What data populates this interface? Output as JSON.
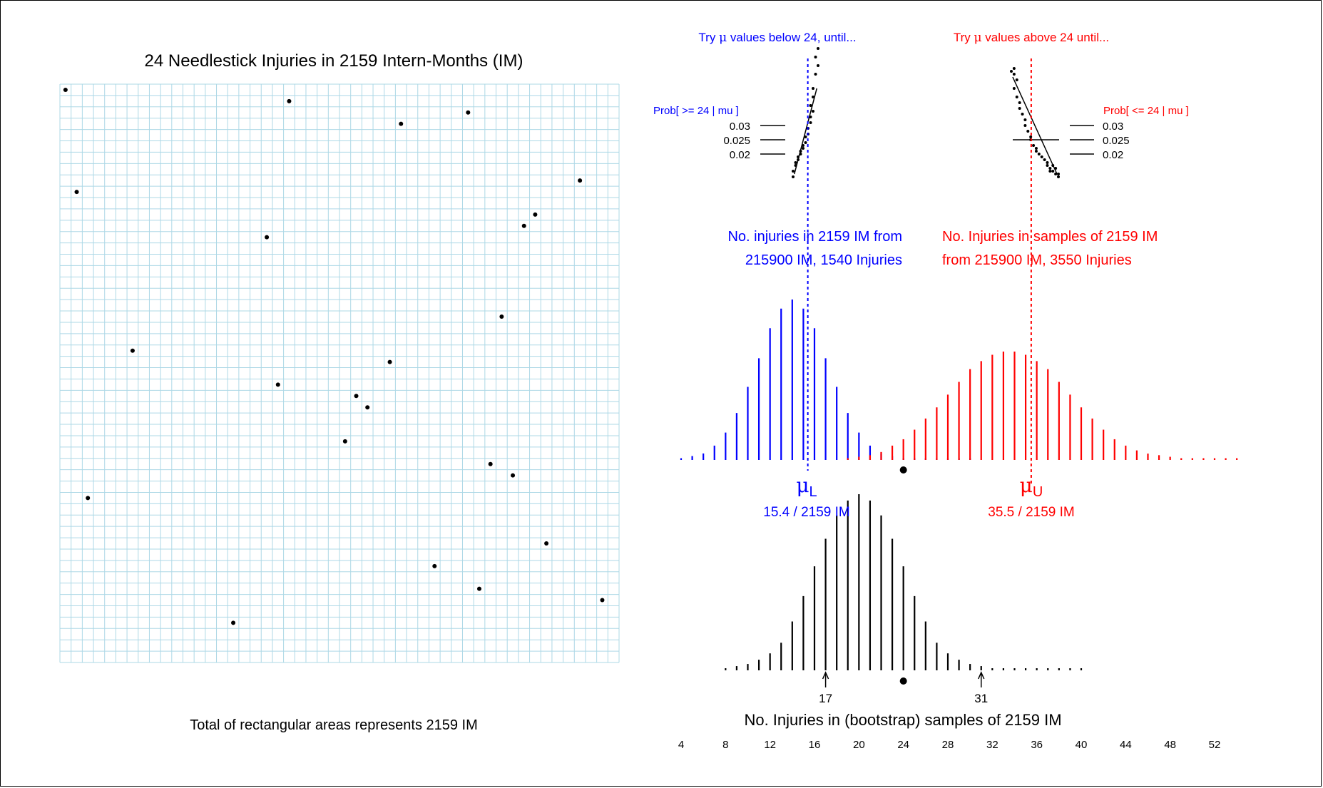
{
  "colors": {
    "lower": "#0000ff",
    "upper": "#ff0000",
    "grid": "#add8e6",
    "ink": "#000000"
  },
  "chart_data": [
    {
      "type": "scatter",
      "panel": "needlestick-grid",
      "title": "24 Needlestick Injuries in 2159 Intern-Months (IM)",
      "caption": "Total of rectangular areas represents 2159 IM",
      "grid": true,
      "grid_rows": 51,
      "grid_cols": 50,
      "points": [
        {
          "col": 0.5,
          "row": 0.5
        },
        {
          "col": 20.5,
          "row": 1.5
        },
        {
          "col": 36.5,
          "row": 2.5
        },
        {
          "col": 30.5,
          "row": 3.5
        },
        {
          "col": 46.5,
          "row": 8.5
        },
        {
          "col": 1.5,
          "row": 9.5
        },
        {
          "col": 42.5,
          "row": 11.5
        },
        {
          "col": 41.5,
          "row": 12.5
        },
        {
          "col": 18.5,
          "row": 13.5
        },
        {
          "col": 39.5,
          "row": 20.5
        },
        {
          "col": 6.5,
          "row": 23.5
        },
        {
          "col": 29.5,
          "row": 24.5
        },
        {
          "col": 19.5,
          "row": 26.5
        },
        {
          "col": 26.5,
          "row": 27.5
        },
        {
          "col": 27.5,
          "row": 28.5
        },
        {
          "col": 25.5,
          "row": 31.5
        },
        {
          "col": 38.5,
          "row": 33.5
        },
        {
          "col": 40.5,
          "row": 34.5
        },
        {
          "col": 2.5,
          "row": 36.5
        },
        {
          "col": 43.5,
          "row": 40.5
        },
        {
          "col": 33.5,
          "row": 42.5
        },
        {
          "col": 37.5,
          "row": 44.5
        },
        {
          "col": 48.5,
          "row": 45.5
        },
        {
          "col": 15.5,
          "row": 47.5
        }
      ]
    },
    {
      "type": "bar",
      "panel": "bootstrap-distribution",
      "xlabel": "No. Injuries in (bootstrap) samples of 2159 IM",
      "x_ticks": [
        4,
        8,
        12,
        16,
        20,
        24,
        28,
        32,
        36,
        40,
        44,
        48,
        52
      ],
      "xlim": [
        4,
        52
      ],
      "observed": 24,
      "markers": [
        {
          "x": 17,
          "label": "17"
        },
        {
          "x": 31,
          "label": "31"
        }
      ],
      "x": [
        8,
        9,
        10,
        11,
        12,
        13,
        14,
        15,
        16,
        17,
        18,
        19,
        20,
        21,
        22,
        23,
        24,
        25,
        26,
        27,
        28,
        29,
        30,
        31,
        32,
        33,
        34,
        35,
        36,
        37,
        38,
        39,
        40
      ],
      "values": [
        0.001,
        0.002,
        0.003,
        0.005,
        0.008,
        0.013,
        0.023,
        0.035,
        0.049,
        0.062,
        0.073,
        0.08,
        0.083,
        0.08,
        0.073,
        0.062,
        0.049,
        0.035,
        0.023,
        0.013,
        0.008,
        0.005,
        0.003,
        0.002,
        0.001,
        0.001,
        0.001,
        0.001,
        0.001,
        0.001,
        0.001,
        0.001,
        0.001
      ]
    },
    {
      "type": "bar",
      "panel": "lower-limit-distribution",
      "color": "#0000ff",
      "label_line1": "No. injuries in 2159 IM from",
      "label_line2": "215900 IM, 1540 Injuries",
      "estimate_symbol": "μ",
      "estimate_subscript": "L",
      "estimate_text": "15.4 / 2159 IM",
      "mu": 15.4,
      "x": [
        4,
        5,
        6,
        7,
        8,
        9,
        10,
        11,
        12,
        13,
        14,
        15,
        16,
        17,
        18,
        19,
        20,
        21,
        22,
        23,
        24,
        25,
        26,
        27,
        28,
        29,
        30
      ],
      "values": [
        0.001,
        0.003,
        0.005,
        0.011,
        0.021,
        0.036,
        0.056,
        0.078,
        0.101,
        0.116,
        0.123,
        0.116,
        0.101,
        0.078,
        0.056,
        0.036,
        0.021,
        0.011,
        0.005,
        0.003,
        0.001,
        0.001,
        0.001,
        0.001,
        0.001,
        0.001,
        0.001
      ]
    },
    {
      "type": "bar",
      "panel": "upper-limit-distribution",
      "color": "#ff0000",
      "label_line1": "No. Injuries in samples of 2159 IM",
      "label_line2": "from 215900 IM, 3550 Injuries",
      "estimate_symbol": "μ",
      "estimate_subscript": "U",
      "estimate_text": "35.5 / 2159 IM",
      "mu": 35.5,
      "x": [
        19,
        20,
        21,
        22,
        23,
        24,
        25,
        26,
        27,
        28,
        29,
        30,
        31,
        32,
        33,
        34,
        35,
        36,
        37,
        38,
        39,
        40,
        41,
        42,
        43,
        44,
        45,
        46,
        47,
        48,
        49,
        50,
        51,
        52,
        53,
        54
      ],
      "values": [
        0.001,
        0.002,
        0.003,
        0.005,
        0.009,
        0.013,
        0.019,
        0.026,
        0.033,
        0.041,
        0.049,
        0.057,
        0.062,
        0.066,
        0.068,
        0.068,
        0.066,
        0.062,
        0.057,
        0.049,
        0.041,
        0.033,
        0.026,
        0.019,
        0.013,
        0.009,
        0.006,
        0.004,
        0.003,
        0.002,
        0.001,
        0.001,
        0.001,
        0.001,
        0.001,
        0.001
      ]
    },
    {
      "type": "scatter",
      "panel": "lower-search",
      "color": "#0000ff",
      "heading_before": "Try ",
      "heading_symbol": "μ",
      "heading_after": " values below 24, until...",
      "yaxis_title": "Prob[ >= 24  | mu ]",
      "y_ticks": [
        "0.03",
        "0.025",
        "0.02"
      ],
      "y_tick_values": [
        0.03,
        0.025,
        0.02
      ],
      "target": 0.025,
      "points": [
        {
          "x": 15.9,
          "y": 0.057
        },
        {
          "x": 15.8,
          "y": 0.054
        },
        {
          "x": 15.9,
          "y": 0.051
        },
        {
          "x": 15.8,
          "y": 0.048
        },
        {
          "x": 15.7,
          "y": 0.043
        },
        {
          "x": 15.7,
          "y": 0.04
        },
        {
          "x": 15.6,
          "y": 0.037
        },
        {
          "x": 15.7,
          "y": 0.035
        },
        {
          "x": 15.6,
          "y": 0.033
        },
        {
          "x": 15.6,
          "y": 0.031
        },
        {
          "x": 15.5,
          "y": 0.029
        },
        {
          "x": 15.5,
          "y": 0.027
        },
        {
          "x": 15.4,
          "y": 0.026
        },
        {
          "x": 15.4,
          "y": 0.024
        },
        {
          "x": 15.3,
          "y": 0.023
        },
        {
          "x": 15.3,
          "y": 0.022
        },
        {
          "x": 15.2,
          "y": 0.021
        },
        {
          "x": 15.2,
          "y": 0.02
        },
        {
          "x": 15.1,
          "y": 0.019
        },
        {
          "x": 15.1,
          "y": 0.018
        },
        {
          "x": 15.0,
          "y": 0.017
        },
        {
          "x": 15.0,
          "y": 0.016
        },
        {
          "x": 14.9,
          "y": 0.014
        },
        {
          "x": 14.9,
          "y": 0.012
        }
      ],
      "fit_from": {
        "x": 14.95,
        "y": 0.013
      },
      "fit_to": {
        "x": 15.85,
        "y": 0.043
      }
    },
    {
      "type": "scatter",
      "panel": "upper-search",
      "color": "#ff0000",
      "heading_before": "Try ",
      "heading_symbol": "μ",
      "heading_after": " values above 24 until...",
      "yaxis_title": "Prob[ <= 24  | mu ]",
      "y_ticks": [
        "0.03",
        "0.025",
        "0.02"
      ],
      "y_tick_values": [
        0.03,
        0.025,
        0.02
      ],
      "target": 0.025,
      "points": [
        {
          "x": 34.8,
          "y": 0.049
        },
        {
          "x": 34.9,
          "y": 0.05
        },
        {
          "x": 34.9,
          "y": 0.048
        },
        {
          "x": 35.0,
          "y": 0.046
        },
        {
          "x": 34.9,
          "y": 0.043
        },
        {
          "x": 35.0,
          "y": 0.04
        },
        {
          "x": 35.1,
          "y": 0.038
        },
        {
          "x": 35.1,
          "y": 0.036
        },
        {
          "x": 35.2,
          "y": 0.034
        },
        {
          "x": 35.3,
          "y": 0.032
        },
        {
          "x": 35.3,
          "y": 0.03
        },
        {
          "x": 35.4,
          "y": 0.028
        },
        {
          "x": 35.5,
          "y": 0.026
        },
        {
          "x": 35.5,
          "y": 0.025
        },
        {
          "x": 35.6,
          "y": 0.023
        },
        {
          "x": 35.7,
          "y": 0.022
        },
        {
          "x": 35.7,
          "y": 0.021
        },
        {
          "x": 35.8,
          "y": 0.02
        },
        {
          "x": 35.9,
          "y": 0.019
        },
        {
          "x": 36.0,
          "y": 0.018
        },
        {
          "x": 36.1,
          "y": 0.017
        },
        {
          "x": 36.1,
          "y": 0.016
        },
        {
          "x": 36.2,
          "y": 0.015
        },
        {
          "x": 36.3,
          "y": 0.014
        },
        {
          "x": 36.4,
          "y": 0.013
        },
        {
          "x": 36.5,
          "y": 0.012
        },
        {
          "x": 36.3,
          "y": 0.016
        },
        {
          "x": 36.2,
          "y": 0.014
        },
        {
          "x": 36.4,
          "y": 0.015
        },
        {
          "x": 36.5,
          "y": 0.013
        }
      ],
      "fit_from": {
        "x": 34.85,
        "y": 0.047
      },
      "fit_to": {
        "x": 36.45,
        "y": 0.013
      }
    }
  ]
}
